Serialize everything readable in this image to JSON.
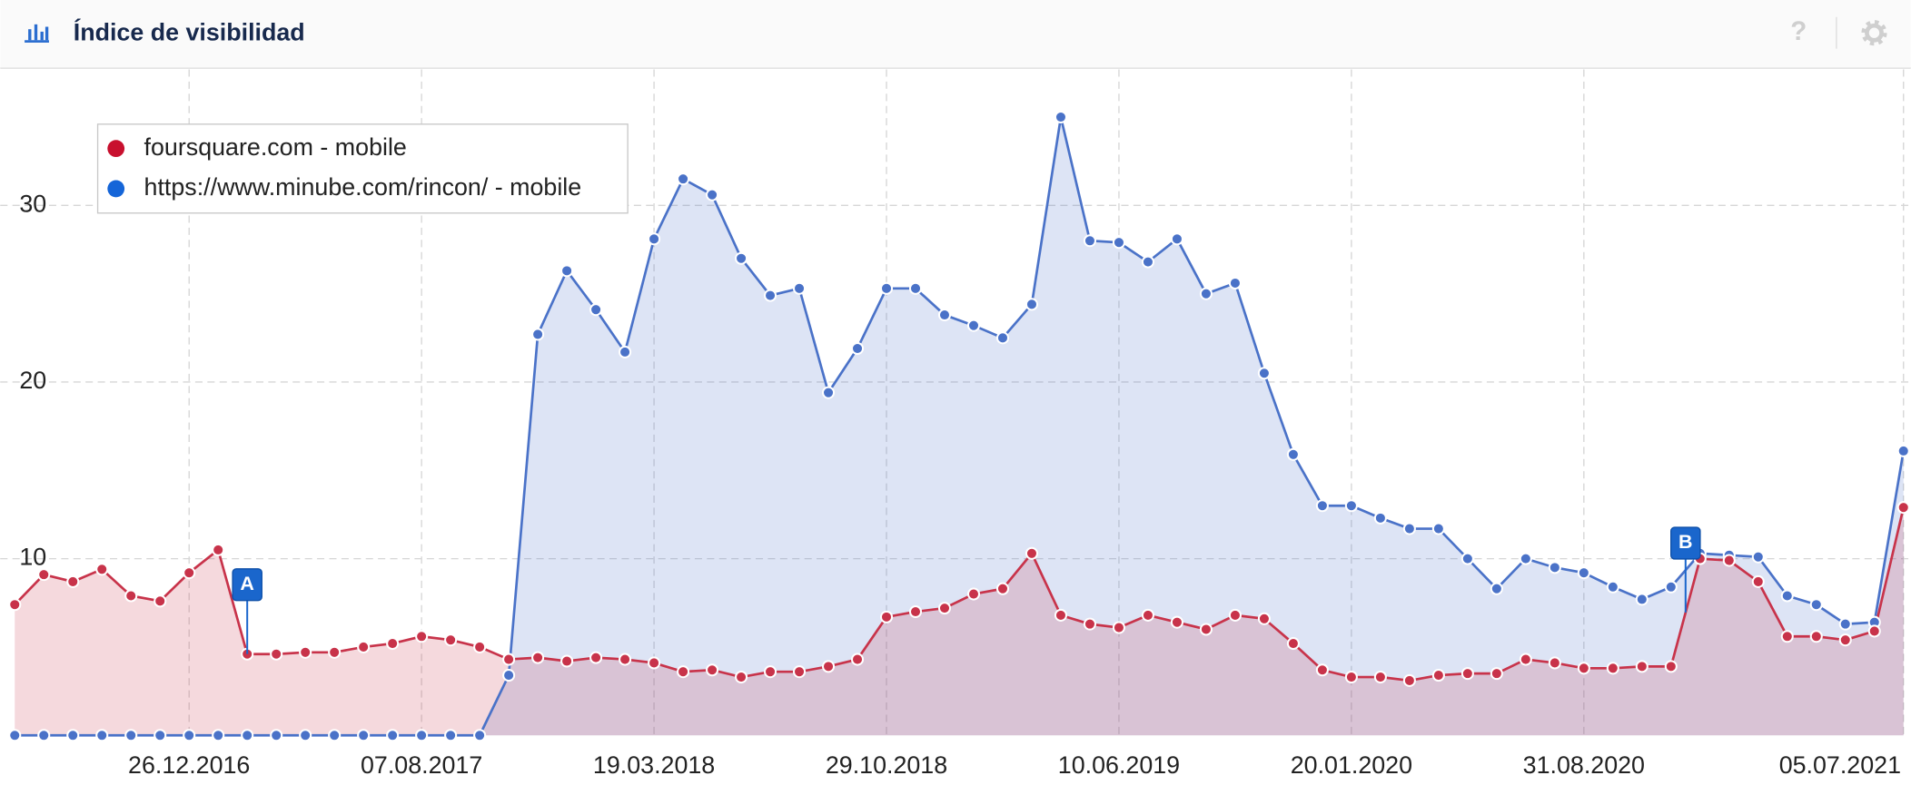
{
  "header": {
    "title": "Índice de visibilidad",
    "help": "?"
  },
  "chart_data": {
    "type": "area",
    "x": [
      "11.07.2016",
      "08.08.2016",
      "05.09.2016",
      "03.10.2016",
      "31.10.2016",
      "28.11.2016",
      "26.12.2016",
      "23.01.2017",
      "20.02.2017",
      "20.03.2017",
      "17.04.2017",
      "15.05.2017",
      "12.06.2017",
      "10.07.2017",
      "07.08.2017",
      "04.09.2017",
      "02.10.2017",
      "30.10.2017",
      "27.11.2017",
      "25.12.2017",
      "22.01.2018",
      "19.02.2018",
      "19.03.2018",
      "16.04.2018",
      "14.05.2018",
      "11.06.2018",
      "09.07.2018",
      "06.08.2018",
      "03.09.2018",
      "01.10.2018",
      "29.10.2018",
      "26.11.2018",
      "24.12.2018",
      "21.01.2019",
      "18.02.2019",
      "18.03.2019",
      "15.04.2019",
      "13.05.2019",
      "10.06.2019",
      "08.07.2019",
      "05.08.2019",
      "02.09.2019",
      "30.09.2019",
      "28.10.2019",
      "25.11.2019",
      "23.12.2019",
      "20.01.2020",
      "17.02.2020",
      "16.03.2020",
      "13.04.2020",
      "11.05.2020",
      "08.06.2020",
      "06.07.2020",
      "03.08.2020",
      "31.08.2020",
      "28.09.2020",
      "26.10.2020",
      "23.11.2020",
      "21.12.2020",
      "18.01.2021",
      "15.02.2021",
      "15.03.2021",
      "12.04.2021",
      "10.05.2021",
      "07.06.2021",
      "05.07.2021"
    ],
    "series": [
      {
        "name": "foursquare.com - mobile",
        "color": "#c8334a",
        "values": [
          7.4,
          9.1,
          8.7,
          9.4,
          7.9,
          7.6,
          9.2,
          10.5,
          4.6,
          4.6,
          4.7,
          4.7,
          5.0,
          5.2,
          5.6,
          5.4,
          5.0,
          4.3,
          4.4,
          4.2,
          4.4,
          4.3,
          4.1,
          3.6,
          3.7,
          3.3,
          3.6,
          3.6,
          3.9,
          4.3,
          6.7,
          7.0,
          7.2,
          8.0,
          8.3,
          10.3,
          6.8,
          6.3,
          6.1,
          6.8,
          6.4,
          6.0,
          6.8,
          6.6,
          5.2,
          3.7,
          3.3,
          3.3,
          3.1,
          3.4,
          3.5,
          3.5,
          4.3,
          4.1,
          3.8,
          3.8,
          3.9,
          3.9,
          10.0,
          9.9,
          8.7,
          5.6,
          5.6,
          5.4,
          5.9,
          12.9
        ]
      },
      {
        "name": "https://www.minube.com/rincon/ - mobile",
        "color": "#4a72c8",
        "values": [
          0,
          0,
          0,
          0,
          0,
          0,
          0,
          0,
          0,
          0,
          0,
          0,
          0,
          0,
          0,
          0,
          0,
          3.4,
          22.7,
          26.3,
          24.1,
          21.7,
          28.1,
          31.5,
          30.6,
          27.0,
          24.9,
          25.3,
          19.4,
          21.9,
          25.3,
          25.3,
          23.8,
          23.2,
          22.5,
          24.4,
          35.0,
          28.0,
          27.9,
          26.8,
          28.1,
          25.0,
          25.6,
          20.5,
          15.9,
          13.0,
          13.0,
          12.3,
          11.7,
          11.7,
          10.0,
          8.3,
          10.0,
          9.5,
          9.2,
          8.4,
          7.7,
          8.4,
          10.3,
          10.2,
          10.1,
          7.9,
          7.4,
          6.3,
          6.4,
          16.1
        ]
      }
    ],
    "xlim": [
      "27.06.2016",
      "12.07.2021"
    ],
    "xticks": [
      "26.12.2016",
      "07.08.2017",
      "19.03.2018",
      "29.10.2018",
      "10.06.2019",
      "20.01.2020",
      "31.08.2020",
      "05.07.2021"
    ],
    "ylim": [
      0,
      37.7
    ],
    "yticks": [
      10,
      20,
      30
    ],
    "grid": true,
    "legend": "top-left",
    "annotations": [
      {
        "label": "A",
        "x": "20.02.2017"
      },
      {
        "label": "B",
        "x": "07.12.2020"
      }
    ]
  }
}
